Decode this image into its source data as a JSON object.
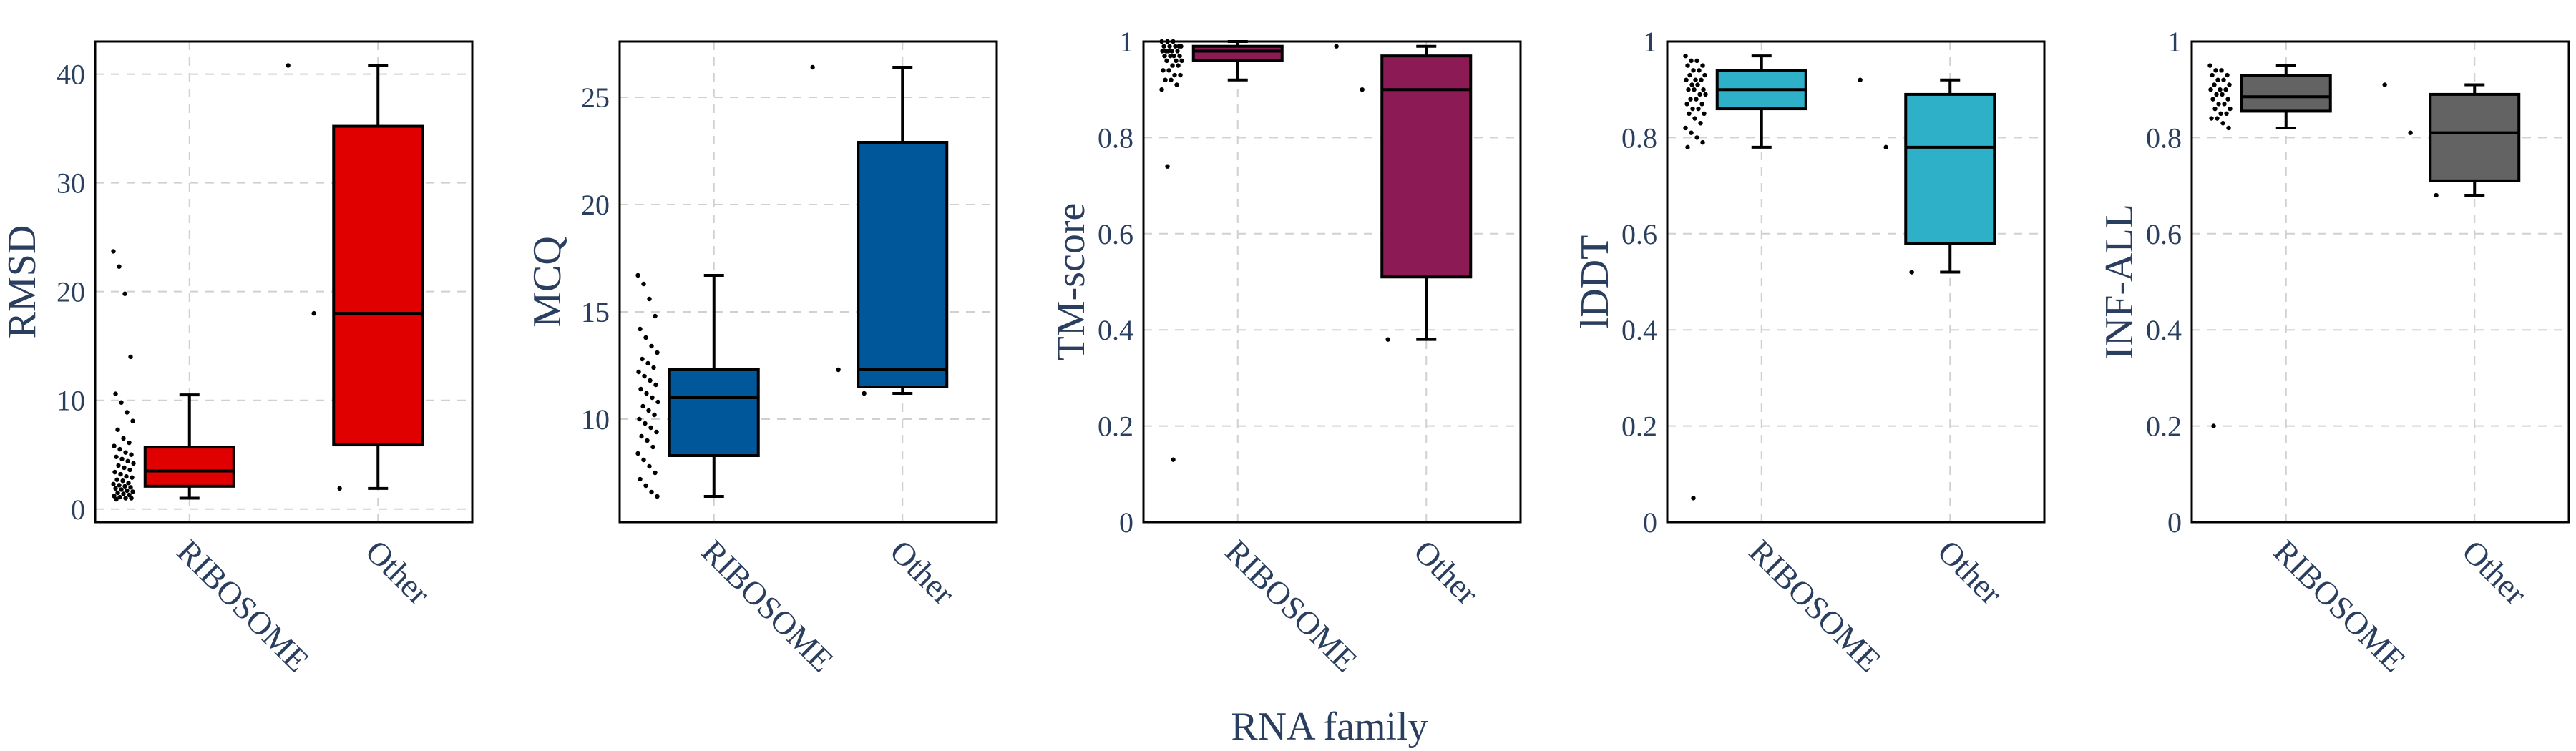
{
  "figure": {
    "xlabel": "RNA family"
  },
  "chart_data": [
    {
      "type": "box",
      "ylabel": "RMSD",
      "color": "#e00000",
      "ylim": [
        -1.2,
        43
      ],
      "yticks": [
        0,
        10,
        20,
        30,
        40
      ],
      "categories": [
        "RIBOSOME",
        "Other"
      ],
      "boxes": [
        {
          "category": "RIBOSOME",
          "min": 1.0,
          "q1": 2.1,
          "median": 3.5,
          "q3": 5.7,
          "max": 10.5
        },
        {
          "category": "Other",
          "min": 1.9,
          "q1": 5.9,
          "median": 18.0,
          "q3": 35.2,
          "max": 40.8
        }
      ],
      "points": [
        {
          "category": "RIBOSOME",
          "values": [
            23.7,
            22.3,
            19.8,
            14.0,
            10.6,
            9.8,
            8.9,
            8.1,
            7.3,
            6.5,
            6.1,
            5.8,
            5.5,
            5.2,
            5.0,
            4.8,
            4.6,
            4.4,
            4.2,
            4.0,
            3.8,
            3.6,
            3.4,
            3.2,
            3.0,
            2.9,
            2.7,
            2.6,
            2.4,
            2.3,
            2.2,
            2.1,
            2.0,
            1.9,
            1.8,
            1.7,
            1.6,
            1.5,
            1.4,
            1.3,
            1.2,
            1.1,
            1.0,
            1.0,
            0.9
          ]
        },
        {
          "category": "Other",
          "values": [
            40.8,
            18.0,
            1.9
          ]
        }
      ]
    },
    {
      "type": "box",
      "ylabel": "MCQ",
      "color": "#005799",
      "ylim": [
        5.2,
        27.6
      ],
      "yticks": [
        10,
        15,
        20,
        25
      ],
      "categories": [
        "RIBOSOME",
        "Other"
      ],
      "boxes": [
        {
          "category": "RIBOSOME",
          "min": 6.4,
          "q1": 8.3,
          "median": 11.0,
          "q3": 12.3,
          "max": 16.7
        },
        {
          "category": "Other",
          "min": 11.2,
          "q1": 11.5,
          "median": 12.3,
          "q3": 22.9,
          "max": 26.4
        }
      ],
      "points": [
        {
          "category": "RIBOSOME",
          "values": [
            16.7,
            16.3,
            15.6,
            14.8,
            14.2,
            13.8,
            13.4,
            13.1,
            12.8,
            12.6,
            12.4,
            12.2,
            12.0,
            11.8,
            11.6,
            11.4,
            11.2,
            11.0,
            10.8,
            10.6,
            10.4,
            10.2,
            10.0,
            9.8,
            9.6,
            9.4,
            9.2,
            9.0,
            8.7,
            8.4,
            8.1,
            7.8,
            7.5,
            7.2,
            6.9,
            6.6,
            6.4
          ]
        },
        {
          "category": "Other",
          "values": [
            26.4,
            12.3,
            11.2
          ]
        }
      ]
    },
    {
      "type": "box",
      "ylabel": "TM-score",
      "color": "#8b1a55",
      "ylim": [
        0,
        1
      ],
      "yticks": [
        0,
        0.2,
        0.4,
        0.6,
        0.8,
        1
      ],
      "categories": [
        "RIBOSOME",
        "Other"
      ],
      "boxes": [
        {
          "category": "RIBOSOME",
          "min": 0.92,
          "q1": 0.96,
          "median": 0.98,
          "q3": 0.99,
          "max": 1.0
        },
        {
          "category": "Other",
          "min": 0.38,
          "q1": 0.51,
          "median": 0.9,
          "q3": 0.97,
          "max": 0.99
        }
      ],
      "points": [
        {
          "category": "RIBOSOME",
          "values": [
            1.0,
            1.0,
            1.0,
            0.99,
            0.99,
            0.99,
            0.99,
            0.99,
            0.98,
            0.98,
            0.98,
            0.98,
            0.98,
            0.97,
            0.97,
            0.97,
            0.97,
            0.96,
            0.96,
            0.96,
            0.95,
            0.95,
            0.94,
            0.94,
            0.93,
            0.93,
            0.92,
            0.92,
            0.91,
            0.9,
            0.74,
            0.13
          ]
        },
        {
          "category": "Other",
          "values": [
            0.99,
            0.9,
            0.38
          ]
        }
      ]
    },
    {
      "type": "box",
      "ylabel": "lDDT",
      "color": "#2eb0c9",
      "ylim": [
        0,
        1
      ],
      "yticks": [
        0,
        0.2,
        0.4,
        0.6,
        0.8,
        1
      ],
      "categories": [
        "RIBOSOME",
        "Other"
      ],
      "boxes": [
        {
          "category": "RIBOSOME",
          "min": 0.78,
          "q1": 0.86,
          "median": 0.9,
          "q3": 0.94,
          "max": 0.97
        },
        {
          "category": "Other",
          "min": 0.52,
          "q1": 0.58,
          "median": 0.78,
          "q3": 0.89,
          "max": 0.92
        }
      ],
      "points": [
        {
          "category": "RIBOSOME",
          "values": [
            0.97,
            0.96,
            0.96,
            0.95,
            0.95,
            0.94,
            0.94,
            0.93,
            0.93,
            0.92,
            0.92,
            0.92,
            0.91,
            0.91,
            0.9,
            0.9,
            0.9,
            0.89,
            0.89,
            0.88,
            0.88,
            0.87,
            0.87,
            0.86,
            0.86,
            0.85,
            0.85,
            0.84,
            0.83,
            0.82,
            0.81,
            0.8,
            0.79,
            0.78,
            0.05
          ]
        },
        {
          "category": "Other",
          "values": [
            0.92,
            0.78,
            0.52
          ]
        }
      ]
    },
    {
      "type": "box",
      "ylabel": "INF-ALL",
      "color": "#636363",
      "ylim": [
        0,
        1
      ],
      "yticks": [
        0,
        0.2,
        0.4,
        0.6,
        0.8,
        1
      ],
      "categories": [
        "RIBOSOME",
        "Other"
      ],
      "boxes": [
        {
          "category": "RIBOSOME",
          "min": 0.82,
          "q1": 0.855,
          "median": 0.885,
          "q3": 0.93,
          "max": 0.95
        },
        {
          "category": "Other",
          "min": 0.68,
          "q1": 0.71,
          "median": 0.81,
          "q3": 0.89,
          "max": 0.91
        }
      ],
      "points": [
        {
          "category": "RIBOSOME",
          "values": [
            0.95,
            0.94,
            0.94,
            0.93,
            0.93,
            0.92,
            0.92,
            0.91,
            0.91,
            0.9,
            0.9,
            0.9,
            0.89,
            0.89,
            0.88,
            0.88,
            0.87,
            0.87,
            0.86,
            0.86,
            0.85,
            0.85,
            0.84,
            0.84,
            0.83,
            0.82,
            0.2
          ]
        },
        {
          "category": "Other",
          "values": [
            0.91,
            0.81,
            0.68
          ]
        }
      ]
    }
  ]
}
